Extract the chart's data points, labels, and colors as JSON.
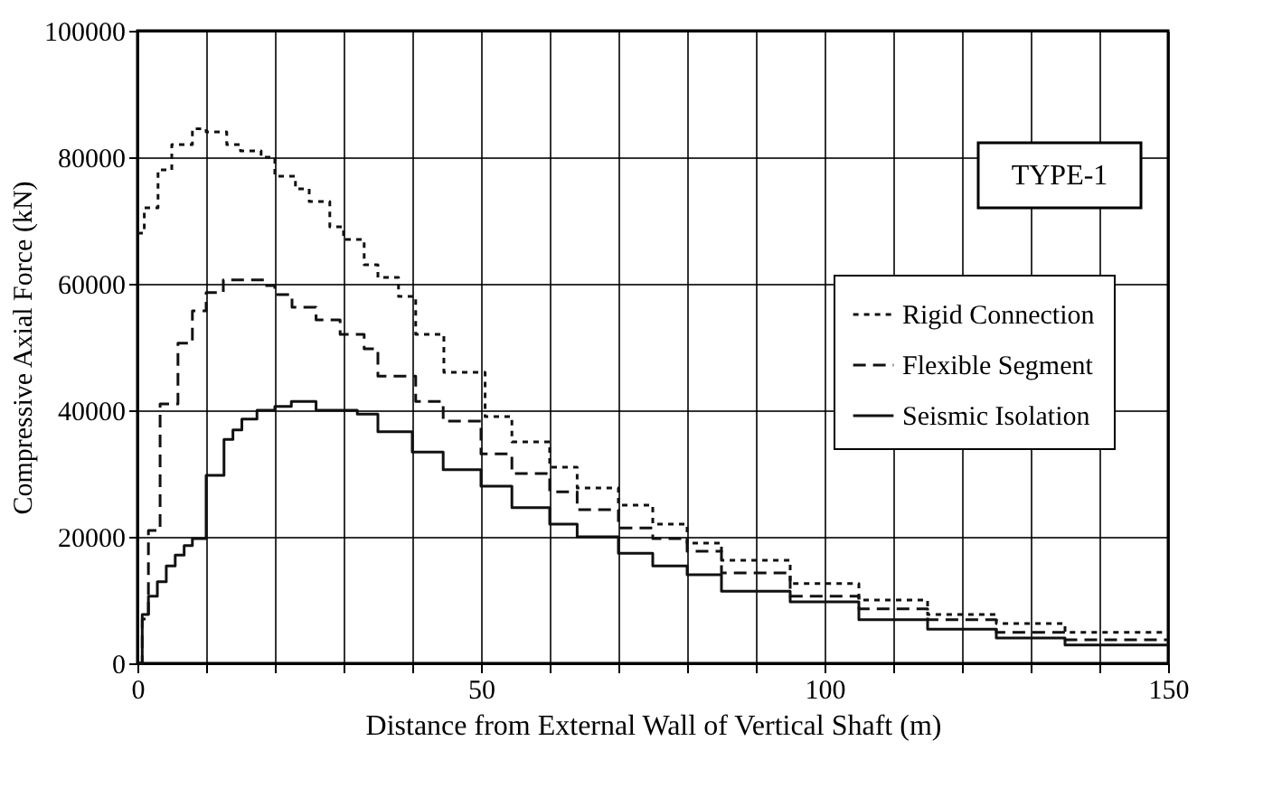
{
  "chart_data": {
    "type": "step",
    "xlabel": "Distance from External Wall of Vertical Shaft (m)",
    "ylabel": "Compressive Axial Force (kN)",
    "xlim": [
      0,
      150
    ],
    "ylim": [
      0,
      100000
    ],
    "xticks": [
      0,
      {
        "value": 10,
        "label": null
      },
      {
        "value": 20,
        "label": null
      },
      {
        "value": 30,
        "label": null
      },
      {
        "value": 40,
        "label": null
      },
      50,
      {
        "value": 60,
        "label": null
      },
      {
        "value": 70,
        "label": null
      },
      {
        "value": 80,
        "label": null
      },
      {
        "value": 90,
        "label": null
      },
      100,
      {
        "value": 110,
        "label": null
      },
      {
        "value": 120,
        "label": null
      },
      {
        "value": 130,
        "label": null
      },
      {
        "value": 140,
        "label": null
      },
      150
    ],
    "yticks": [
      0,
      20000,
      40000,
      60000,
      80000,
      100000
    ],
    "grid": true,
    "legend": "right",
    "annotations": [
      "TYPE-1"
    ],
    "series": [
      {
        "name": "Rigid Connection",
        "color": "#111111",
        "line_style": "dotted",
        "x": [
          0,
          1,
          3,
          5,
          8,
          10,
          13,
          15,
          18,
          20,
          23,
          25,
          28,
          30,
          33,
          35,
          38,
          40.5,
          44.6,
          50.6,
          54.5,
          60,
          64,
          70,
          75,
          80,
          85,
          95,
          105,
          115,
          125,
          135,
          150
        ],
        "values": [
          68000,
          72000,
          78000,
          82000,
          84500,
          84000,
          82000,
          81000,
          80000,
          77000,
          75000,
          73000,
          69000,
          67000,
          63000,
          61000,
          58000,
          52000,
          46000,
          39000,
          35000,
          31000,
          27700,
          25000,
          22000,
          19000,
          16300,
          12600,
          10000,
          7700,
          6300,
          4900,
          4900
        ]
      },
      {
        "name": "Flexible Segment",
        "color": "#111111",
        "line_style": "dashed",
        "x": [
          0,
          0.7,
          1.6,
          3.3,
          5.9,
          8,
          10,
          12.5,
          18.5,
          20,
          22.5,
          26,
          29.5,
          33,
          35,
          40.5,
          44.5,
          50,
          54.5,
          60,
          64,
          70,
          75,
          80,
          85,
          95,
          105,
          115,
          125,
          135,
          150
        ],
        "values": [
          0,
          7000,
          21000,
          41000,
          50600,
          55700,
          58600,
          60600,
          59700,
          58300,
          56300,
          54300,
          52000,
          49700,
          45400,
          41400,
          38300,
          33100,
          30000,
          27100,
          24300,
          21400,
          19700,
          17700,
          14300,
          10600,
          8600,
          6900,
          4900,
          3700,
          3700
        ]
      },
      {
        "name": "Seismic Isolation",
        "color": "#111111",
        "line_style": "solid",
        "x": [
          0,
          0.7,
          1.6,
          2.9,
          4.2,
          5.5,
          6.8,
          8,
          10,
          12.6,
          13.9,
          15.2,
          17.4,
          20,
          22.4,
          26,
          32,
          35,
          40,
          44.5,
          50,
          54.5,
          60,
          64,
          70,
          75,
          80,
          85,
          95,
          105,
          115,
          125,
          135,
          150
        ],
        "values": [
          0,
          7700,
          10600,
          12900,
          15400,
          17100,
          18600,
          19700,
          29700,
          35400,
          36900,
          38600,
          40000,
          40600,
          41400,
          40000,
          39400,
          36600,
          33400,
          30600,
          28000,
          24600,
          22000,
          20000,
          17400,
          15400,
          14000,
          11400,
          9700,
          6900,
          5400,
          4000,
          2900,
          2900
        ]
      }
    ]
  }
}
